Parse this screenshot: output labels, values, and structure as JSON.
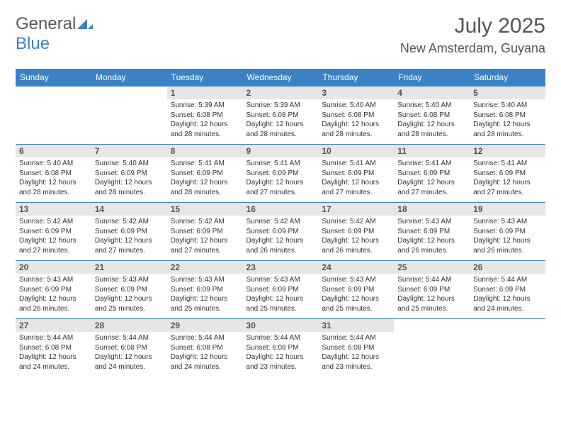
{
  "logo": {
    "part1": "General",
    "part2": "Blue"
  },
  "title": "July 2025",
  "location": "New Amsterdam, Guyana",
  "colors": {
    "header_bg": "#3b82c4",
    "header_fg": "#ffffff",
    "daynum_bg": "#e6e6e6",
    "text": "#333333",
    "brand_gray": "#5a5a5a",
    "brand_blue": "#3b82c4"
  },
  "dayNames": [
    "Sunday",
    "Monday",
    "Tuesday",
    "Wednesday",
    "Thursday",
    "Friday",
    "Saturday"
  ],
  "weeks": [
    [
      null,
      null,
      {
        "n": "1",
        "sr": "5:39 AM",
        "ss": "6:08 PM",
        "dl": "12 hours and 28 minutes."
      },
      {
        "n": "2",
        "sr": "5:39 AM",
        "ss": "6:08 PM",
        "dl": "12 hours and 28 minutes."
      },
      {
        "n": "3",
        "sr": "5:40 AM",
        "ss": "6:08 PM",
        "dl": "12 hours and 28 minutes."
      },
      {
        "n": "4",
        "sr": "5:40 AM",
        "ss": "6:08 PM",
        "dl": "12 hours and 28 minutes."
      },
      {
        "n": "5",
        "sr": "5:40 AM",
        "ss": "6:08 PM",
        "dl": "12 hours and 28 minutes."
      }
    ],
    [
      {
        "n": "6",
        "sr": "5:40 AM",
        "ss": "6:08 PM",
        "dl": "12 hours and 28 minutes."
      },
      {
        "n": "7",
        "sr": "5:40 AM",
        "ss": "6:09 PM",
        "dl": "12 hours and 28 minutes."
      },
      {
        "n": "8",
        "sr": "5:41 AM",
        "ss": "6:09 PM",
        "dl": "12 hours and 28 minutes."
      },
      {
        "n": "9",
        "sr": "5:41 AM",
        "ss": "6:09 PM",
        "dl": "12 hours and 27 minutes."
      },
      {
        "n": "10",
        "sr": "5:41 AM",
        "ss": "6:09 PM",
        "dl": "12 hours and 27 minutes."
      },
      {
        "n": "11",
        "sr": "5:41 AM",
        "ss": "6:09 PM",
        "dl": "12 hours and 27 minutes."
      },
      {
        "n": "12",
        "sr": "5:41 AM",
        "ss": "6:09 PM",
        "dl": "12 hours and 27 minutes."
      }
    ],
    [
      {
        "n": "13",
        "sr": "5:42 AM",
        "ss": "6:09 PM",
        "dl": "12 hours and 27 minutes."
      },
      {
        "n": "14",
        "sr": "5:42 AM",
        "ss": "6:09 PM",
        "dl": "12 hours and 27 minutes."
      },
      {
        "n": "15",
        "sr": "5:42 AM",
        "ss": "6:09 PM",
        "dl": "12 hours and 27 minutes."
      },
      {
        "n": "16",
        "sr": "5:42 AM",
        "ss": "6:09 PM",
        "dl": "12 hours and 26 minutes."
      },
      {
        "n": "17",
        "sr": "5:42 AM",
        "ss": "6:09 PM",
        "dl": "12 hours and 26 minutes."
      },
      {
        "n": "18",
        "sr": "5:43 AM",
        "ss": "6:09 PM",
        "dl": "12 hours and 26 minutes."
      },
      {
        "n": "19",
        "sr": "5:43 AM",
        "ss": "6:09 PM",
        "dl": "12 hours and 26 minutes."
      }
    ],
    [
      {
        "n": "20",
        "sr": "5:43 AM",
        "ss": "6:09 PM",
        "dl": "12 hours and 26 minutes."
      },
      {
        "n": "21",
        "sr": "5:43 AM",
        "ss": "6:09 PM",
        "dl": "12 hours and 25 minutes."
      },
      {
        "n": "22",
        "sr": "5:43 AM",
        "ss": "6:09 PM",
        "dl": "12 hours and 25 minutes."
      },
      {
        "n": "23",
        "sr": "5:43 AM",
        "ss": "6:09 PM",
        "dl": "12 hours and 25 minutes."
      },
      {
        "n": "24",
        "sr": "5:43 AM",
        "ss": "6:09 PM",
        "dl": "12 hours and 25 minutes."
      },
      {
        "n": "25",
        "sr": "5:44 AM",
        "ss": "6:09 PM",
        "dl": "12 hours and 25 minutes."
      },
      {
        "n": "26",
        "sr": "5:44 AM",
        "ss": "6:09 PM",
        "dl": "12 hours and 24 minutes."
      }
    ],
    [
      {
        "n": "27",
        "sr": "5:44 AM",
        "ss": "6:08 PM",
        "dl": "12 hours and 24 minutes."
      },
      {
        "n": "28",
        "sr": "5:44 AM",
        "ss": "6:08 PM",
        "dl": "12 hours and 24 minutes."
      },
      {
        "n": "29",
        "sr": "5:44 AM",
        "ss": "6:08 PM",
        "dl": "12 hours and 24 minutes."
      },
      {
        "n": "30",
        "sr": "5:44 AM",
        "ss": "6:08 PM",
        "dl": "12 hours and 23 minutes."
      },
      {
        "n": "31",
        "sr": "5:44 AM",
        "ss": "6:08 PM",
        "dl": "12 hours and 23 minutes."
      },
      null,
      null
    ]
  ],
  "labels": {
    "sunrise": "Sunrise:",
    "sunset": "Sunset:",
    "daylight": "Daylight:"
  }
}
